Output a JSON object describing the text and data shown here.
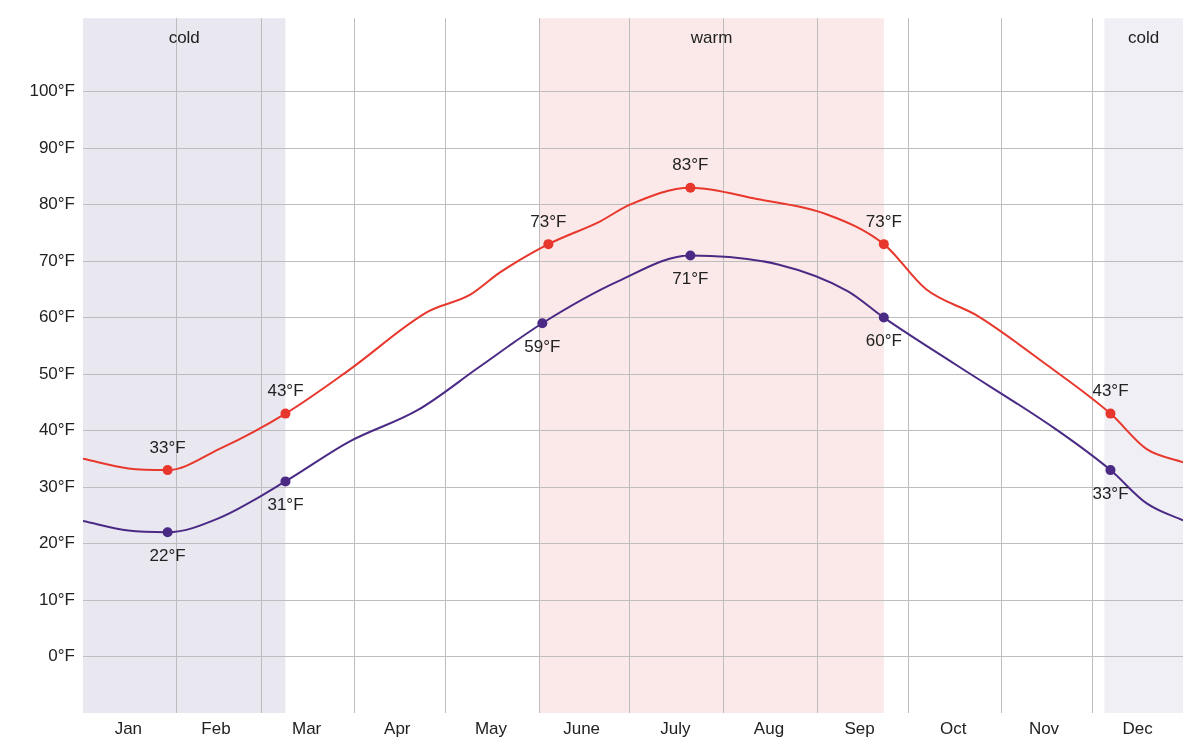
{
  "chart_data": {
    "type": "line",
    "xlim": [
      "--01-01",
      "--12-31"
    ],
    "xticks": [
      {
        "value": "--01-16",
        "label": "Jan"
      },
      {
        "value": "--02-01",
        "label": null
      },
      {
        "value": "--02-14",
        "label": "Feb"
      },
      {
        "value": "--03-01",
        "label": null
      },
      {
        "value": "--03-16",
        "label": "Mar"
      },
      {
        "value": "--04-01",
        "label": null
      },
      {
        "value": "--04-15",
        "label": "Apr"
      },
      {
        "value": "--05-01",
        "label": null
      },
      {
        "value": "--05-16",
        "label": "May"
      },
      {
        "value": "--06-01",
        "label": null
      },
      {
        "value": "--06-15",
        "label": "June"
      },
      {
        "value": "--07-01",
        "label": null
      },
      {
        "value": "--07-16",
        "label": "July"
      },
      {
        "value": "--08-01",
        "label": null
      },
      {
        "value": "--08-16",
        "label": "Aug"
      },
      {
        "value": "--09-01",
        "label": null
      },
      {
        "value": "--09-15",
        "label": "Sep"
      },
      {
        "value": "--10-01",
        "label": null
      },
      {
        "value": "--10-16",
        "label": "Oct"
      },
      {
        "value": "--11-01",
        "label": null
      },
      {
        "value": "--11-15",
        "label": "Nov"
      },
      {
        "value": "--12-01",
        "label": null
      },
      {
        "value": "--12-16",
        "label": "Dec"
      }
    ],
    "ylim": [
      -10,
      113
    ],
    "yticks": [
      {
        "value": 0,
        "label": "0°F"
      },
      {
        "value": 10,
        "label": "10°F"
      },
      {
        "value": 20,
        "label": "20°F"
      },
      {
        "value": 30,
        "label": "30°F"
      },
      {
        "value": 40,
        "label": "40°F"
      },
      {
        "value": 50,
        "label": "50°F"
      },
      {
        "value": 60,
        "label": "60°F"
      },
      {
        "value": 70,
        "label": "70°F"
      },
      {
        "value": 80,
        "label": "80°F"
      },
      {
        "value": 90,
        "label": "90°F"
      },
      {
        "value": 100,
        "label": "100°F"
      }
    ],
    "grid": true,
    "legend": false,
    "marker": "circle",
    "line_style": "solid",
    "bands": [
      {
        "axis": "x",
        "from": "--01-01",
        "to": "--03-09",
        "label": "cold",
        "color": "#e9e7f0"
      },
      {
        "axis": "x",
        "from": "--06-01",
        "to": "--09-23",
        "label": "warm",
        "color": "#fbe8e8"
      },
      {
        "axis": "x",
        "from": "--12-05",
        "to": "--12-31",
        "label": "cold",
        "color": "#f0eff5"
      }
    ],
    "series": [
      {
        "type": "scatter",
        "color": "#e8372c",
        "x": [
          "--01-29",
          "--03-09",
          "--06-04",
          "--07-21",
          "--09-23",
          "--12-07"
        ],
        "values": [
          33,
          43,
          73,
          83,
          73,
          43
        ],
        "value_labels": [
          "33°F",
          "43°F",
          "73°F",
          "83°F",
          "73°F",
          "43°F"
        ]
      },
      {
        "type": "scatter",
        "color": "#4b2a85",
        "x": [
          "--01-29",
          "--03-09",
          "--06-02",
          "--07-21",
          "--09-23",
          "--12-07"
        ],
        "values": [
          22,
          31,
          59,
          71,
          60,
          33
        ],
        "value_labels": [
          "22°F",
          "31°F",
          "59°F",
          "71°F",
          "60°F",
          "33°F"
        ]
      },
      {
        "marker": "none",
        "color": "#e8372c",
        "x": [
          "--01-01",
          "--01-16",
          "--01-29",
          "--02-15",
          "--03-09",
          "--03-30",
          "--04-25",
          "--05-09",
          "--05-19",
          "--06-04",
          "--06-21",
          "--07-01",
          "--07-21",
          "--08-12",
          "--09-04",
          "--09-23",
          "--10-07",
          "--10-24",
          "--11-16",
          "--12-07",
          "--12-19",
          "--12-31"
        ],
        "values": [
          35,
          33.3,
          33,
          36.7,
          43,
          50.7,
          61,
          64,
          68,
          73,
          77,
          80,
          83,
          81,
          78.3,
          73,
          65,
          60.3,
          51.6,
          43,
          36.7,
          34.4
        ]
      },
      {
        "marker": "none",
        "color": "#4b2a85",
        "x": [
          "--01-01",
          "--01-16",
          "--01-29",
          "--02-15",
          "--03-09",
          "--03-30",
          "--04-22",
          "--05-12",
          "--06-02",
          "--06-27",
          "--07-21",
          "--08-19",
          "--09-11",
          "--09-23",
          "--10-17",
          "--11-19",
          "--12-07",
          "--12-19",
          "--12-31"
        ],
        "values": [
          24,
          22.3,
          22,
          24.5,
          31,
          38,
          43.7,
          51.2,
          59,
          66.4,
          71,
          69.4,
          64.7,
          60,
          51.6,
          40.2,
          33,
          27.1,
          24.1
        ]
      }
    ]
  }
}
